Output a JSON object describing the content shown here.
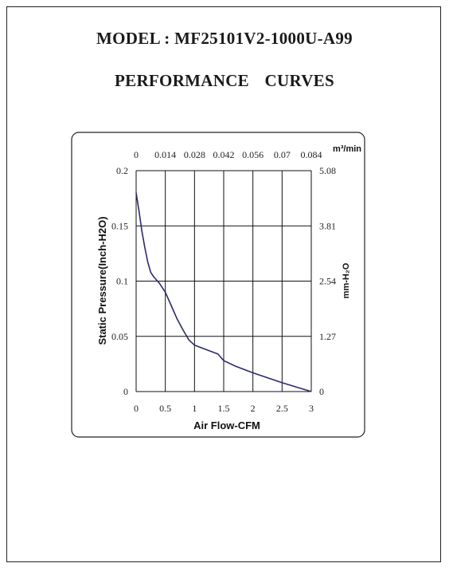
{
  "header": {
    "model": "MODEL : MF25101V2-1000U-A99",
    "subtitle": "PERFORMANCE CURVES"
  },
  "colors": {
    "curve": "#2b2a6e",
    "grid": "#111111",
    "frame": "#222222"
  },
  "chart_data": {
    "type": "line",
    "xlabel": "Air Flow-CFM",
    "ylabel": "Static Pressure(Inch-H2O)",
    "top_axis_unit": "m³/min",
    "right_axis_unit": "mm-H₂O",
    "xlim": [
      0,
      3
    ],
    "ylim": [
      0,
      0.2
    ],
    "x_ticks": [
      "0",
      "0.5",
      "1",
      "1.5",
      "2",
      "2.5",
      "3"
    ],
    "y_ticks": [
      "0",
      "0.05",
      "0.1",
      "0.15",
      "0.2"
    ],
    "top_ticks": [
      "0",
      "0.014",
      "0.028",
      "0.042",
      "0.056",
      "0.07",
      "0.084"
    ],
    "right_ticks": [
      "0",
      "1.27",
      "2.54",
      "3.81",
      "5.08"
    ],
    "grid": true,
    "series": [
      {
        "x": [
          0,
          0.05,
          0.1,
          0.15,
          0.2,
          0.25,
          0.3,
          0.4,
          0.5,
          0.6,
          0.7,
          0.8,
          0.9,
          1.0,
          1.2,
          1.4,
          1.5,
          1.7,
          2.0,
          2.5,
          3.0
        ],
        "y": [
          0.18,
          0.163,
          0.145,
          0.13,
          0.117,
          0.108,
          0.104,
          0.098,
          0.09,
          0.078,
          0.066,
          0.056,
          0.047,
          0.042,
          0.038,
          0.034,
          0.028,
          0.023,
          0.017,
          0.008,
          0.0
        ]
      }
    ]
  }
}
